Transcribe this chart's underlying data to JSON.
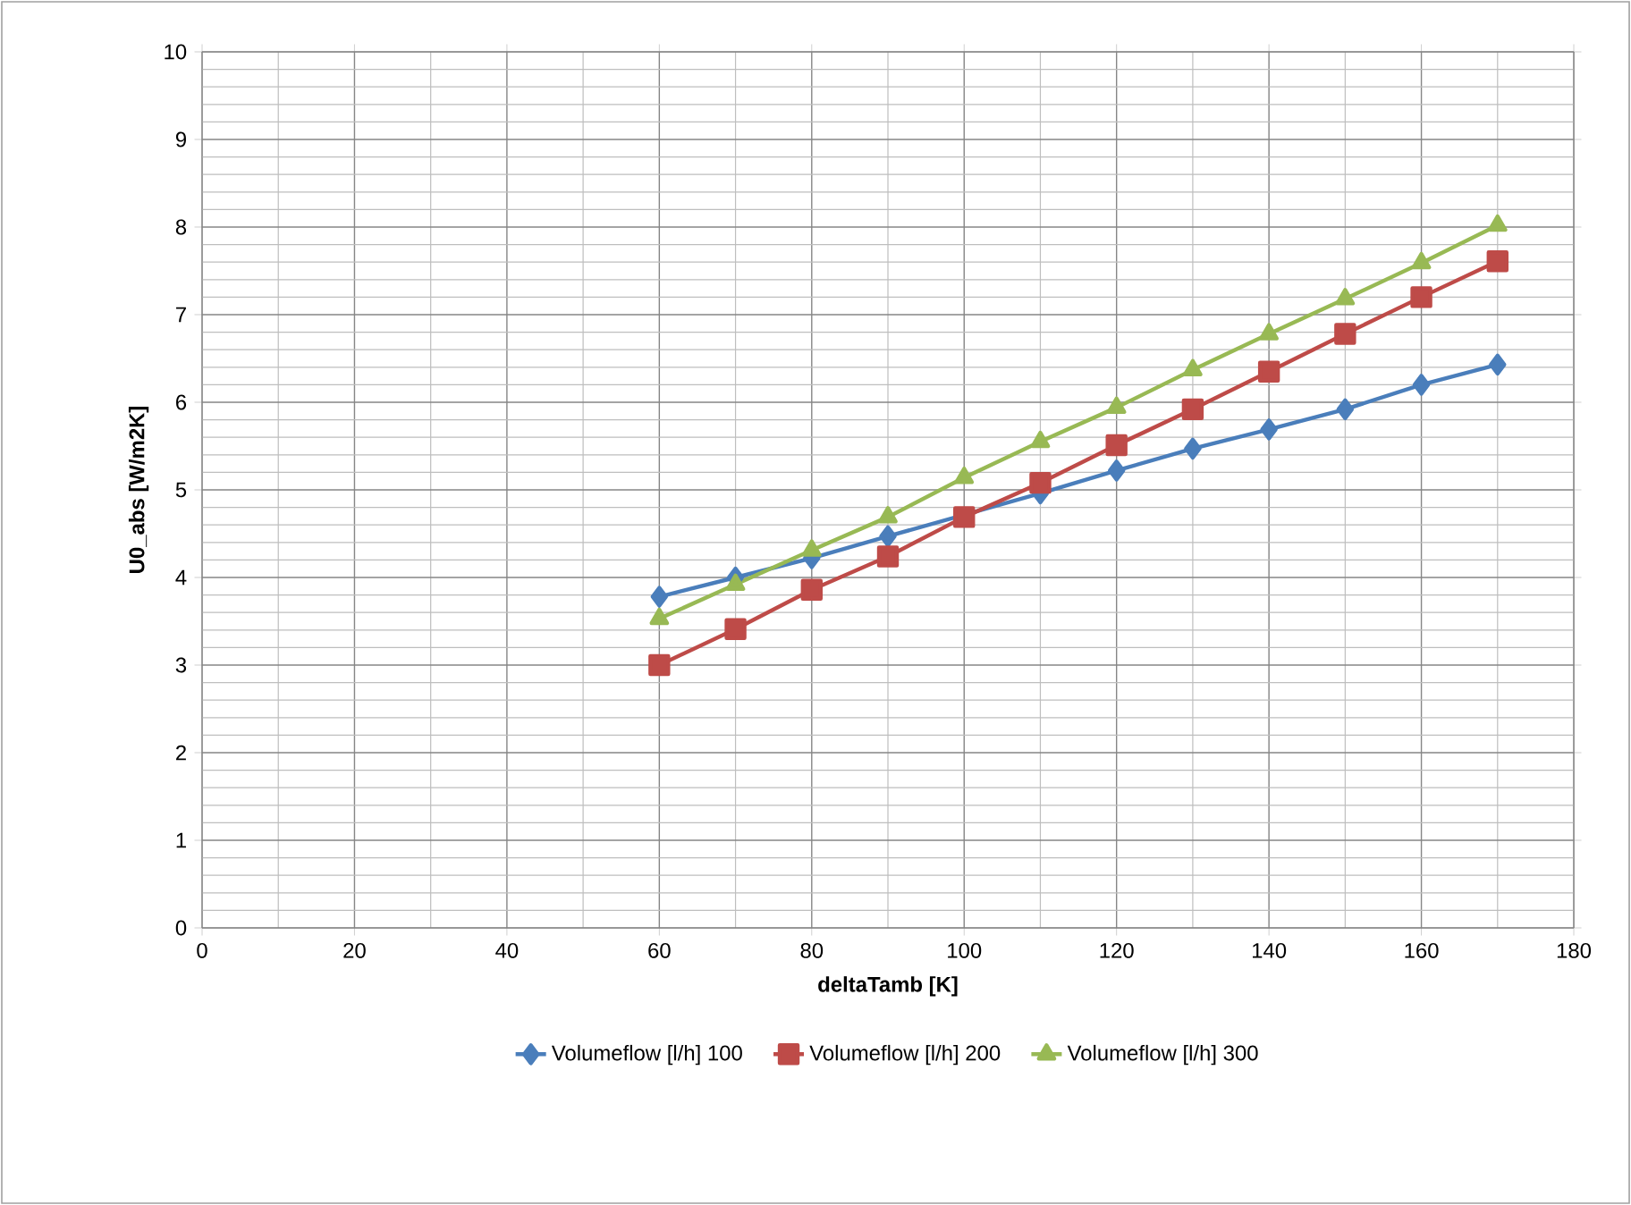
{
  "chart_data": {
    "type": "line",
    "xlabel": "deltaTamb [K]",
    "ylabel": "U0_abs [W/m2K]",
    "x": [
      60,
      70,
      80,
      90,
      100,
      110,
      120,
      130,
      140,
      150,
      160,
      170
    ],
    "series": [
      {
        "name": "Volumeflow [l/h] 100",
        "color": "#4a7ebb",
        "marker": "diamond",
        "values": [
          3.78,
          4.0,
          4.22,
          4.47,
          null,
          4.96,
          5.22,
          5.47,
          5.69,
          5.92,
          6.2,
          6.43
        ]
      },
      {
        "name": "Volumeflow [l/h] 200",
        "color": "#be4b48",
        "marker": "square",
        "values": [
          3.0,
          3.41,
          3.86,
          4.24,
          4.69,
          5.08,
          5.51,
          5.92,
          6.35,
          6.78,
          7.2,
          7.61
        ]
      },
      {
        "name": "Volumeflow [l/h] 300",
        "color": "#98b954",
        "marker": "triangle",
        "values": [
          3.53,
          3.92,
          4.31,
          4.69,
          5.14,
          5.55,
          5.94,
          6.37,
          6.78,
          7.18,
          7.59,
          8.02
        ]
      }
    ],
    "xlim": [
      0,
      180
    ],
    "xticks": [
      0,
      20,
      40,
      60,
      80,
      100,
      120,
      140,
      160,
      180
    ],
    "ylim": [
      0,
      10
    ],
    "yticks": [
      0,
      1,
      2,
      3,
      4,
      5,
      6,
      7,
      8,
      9,
      10
    ],
    "grid": true,
    "legend": "bottom",
    "line_style": "solid"
  }
}
